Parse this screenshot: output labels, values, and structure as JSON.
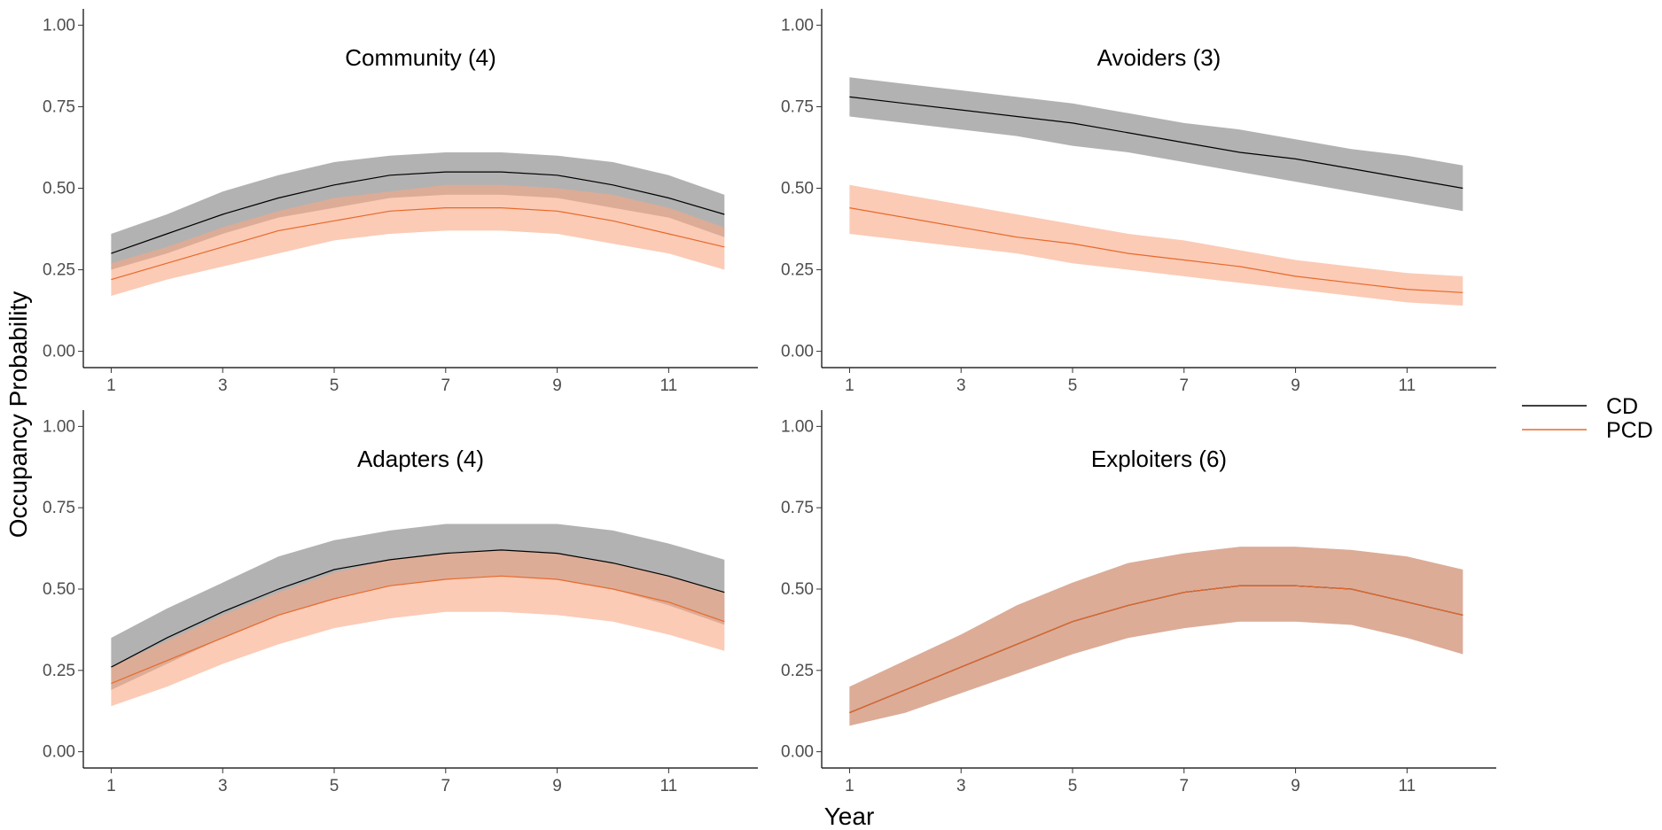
{
  "chart_data": {
    "type": "line",
    "x_label": "Year",
    "y_label": "Occupancy Probability",
    "x_ticks": [
      1,
      3,
      5,
      7,
      9,
      11
    ],
    "y_ticks": [
      "0.00",
      "0.25",
      "0.50",
      "0.75",
      "1.00"
    ],
    "xlim": [
      0.5,
      12.6
    ],
    "ylim": [
      -0.05,
      1.05
    ],
    "legend_position": "right",
    "legend": [
      {
        "key": "CD",
        "label": "CD",
        "line_color": "#000000",
        "band_color": "#7f7f7f"
      },
      {
        "key": "PCD",
        "label": "PCD",
        "line_color": "#e8692a",
        "band_color": "#f9a986"
      }
    ],
    "x": [
      1,
      2,
      3,
      4,
      5,
      6,
      7,
      8,
      9,
      10,
      11,
      12
    ],
    "panels": [
      {
        "title": "Community (4)",
        "series": [
          {
            "key": "CD",
            "mean": [
              0.3,
              0.36,
              0.42,
              0.47,
              0.51,
              0.54,
              0.55,
              0.55,
              0.54,
              0.51,
              0.47,
              0.42
            ],
            "lower": [
              0.25,
              0.3,
              0.36,
              0.41,
              0.44,
              0.47,
              0.48,
              0.48,
              0.47,
              0.44,
              0.41,
              0.35
            ],
            "upper": [
              0.36,
              0.42,
              0.49,
              0.54,
              0.58,
              0.6,
              0.61,
              0.61,
              0.6,
              0.58,
              0.54,
              0.48
            ]
          },
          {
            "key": "PCD",
            "mean": [
              0.22,
              0.27,
              0.32,
              0.37,
              0.4,
              0.43,
              0.44,
              0.44,
              0.43,
              0.4,
              0.36,
              0.32
            ],
            "lower": [
              0.17,
              0.22,
              0.26,
              0.3,
              0.34,
              0.36,
              0.37,
              0.37,
              0.36,
              0.33,
              0.3,
              0.25
            ],
            "upper": [
              0.27,
              0.32,
              0.38,
              0.43,
              0.47,
              0.49,
              0.51,
              0.51,
              0.5,
              0.48,
              0.44,
              0.38
            ]
          }
        ]
      },
      {
        "title": "Avoiders (3)",
        "series": [
          {
            "key": "CD",
            "mean": [
              0.78,
              0.76,
              0.74,
              0.72,
              0.7,
              0.67,
              0.64,
              0.61,
              0.59,
              0.56,
              0.53,
              0.5
            ],
            "lower": [
              0.72,
              0.7,
              0.68,
              0.66,
              0.63,
              0.61,
              0.58,
              0.55,
              0.52,
              0.49,
              0.46,
              0.43
            ],
            "upper": [
              0.84,
              0.82,
              0.8,
              0.78,
              0.76,
              0.73,
              0.7,
              0.68,
              0.65,
              0.62,
              0.6,
              0.57
            ]
          },
          {
            "key": "PCD",
            "mean": [
              0.44,
              0.41,
              0.38,
              0.35,
              0.33,
              0.3,
              0.28,
              0.26,
              0.23,
              0.21,
              0.19,
              0.18
            ],
            "lower": [
              0.36,
              0.34,
              0.32,
              0.3,
              0.27,
              0.25,
              0.23,
              0.21,
              0.19,
              0.17,
              0.15,
              0.14
            ],
            "upper": [
              0.51,
              0.48,
              0.45,
              0.42,
              0.39,
              0.36,
              0.34,
              0.31,
              0.28,
              0.26,
              0.24,
              0.23
            ]
          }
        ]
      },
      {
        "title": "Adapters (4)",
        "series": [
          {
            "key": "CD",
            "mean": [
              0.26,
              0.35,
              0.43,
              0.5,
              0.56,
              0.59,
              0.61,
              0.62,
              0.61,
              0.58,
              0.54,
              0.49
            ],
            "lower": [
              0.19,
              0.27,
              0.35,
              0.42,
              0.47,
              0.51,
              0.53,
              0.54,
              0.53,
              0.5,
              0.45,
              0.39
            ],
            "upper": [
              0.35,
              0.44,
              0.52,
              0.6,
              0.65,
              0.68,
              0.7,
              0.7,
              0.7,
              0.68,
              0.64,
              0.59
            ]
          },
          {
            "key": "PCD",
            "mean": [
              0.21,
              0.28,
              0.35,
              0.42,
              0.47,
              0.51,
              0.53,
              0.54,
              0.53,
              0.5,
              0.46,
              0.4
            ],
            "lower": [
              0.14,
              0.2,
              0.27,
              0.33,
              0.38,
              0.41,
              0.43,
              0.43,
              0.42,
              0.4,
              0.36,
              0.31
            ],
            "upper": [
              0.26,
              0.34,
              0.42,
              0.49,
              0.55,
              0.59,
              0.61,
              0.62,
              0.61,
              0.58,
              0.54,
              0.49
            ]
          }
        ]
      },
      {
        "title": "Exploiters (6)",
        "series": [
          {
            "key": "CD",
            "mean": [
              0.12,
              0.19,
              0.26,
              0.33,
              0.4,
              0.45,
              0.49,
              0.51,
              0.51,
              0.5,
              0.46,
              0.42
            ],
            "lower": [
              0.08,
              0.12,
              0.18,
              0.24,
              0.3,
              0.35,
              0.38,
              0.4,
              0.4,
              0.39,
              0.35,
              0.3
            ],
            "upper": [
              0.2,
              0.28,
              0.36,
              0.45,
              0.52,
              0.58,
              0.61,
              0.63,
              0.63,
              0.62,
              0.6,
              0.56
            ]
          },
          {
            "key": "PCD",
            "mean": [
              0.12,
              0.19,
              0.26,
              0.33,
              0.4,
              0.45,
              0.49,
              0.51,
              0.51,
              0.5,
              0.46,
              0.42
            ],
            "lower": [
              0.08,
              0.12,
              0.18,
              0.24,
              0.3,
              0.35,
              0.38,
              0.4,
              0.4,
              0.39,
              0.35,
              0.3
            ],
            "upper": [
              0.2,
              0.28,
              0.36,
              0.45,
              0.52,
              0.58,
              0.61,
              0.63,
              0.63,
              0.62,
              0.6,
              0.56
            ]
          }
        ]
      }
    ]
  }
}
